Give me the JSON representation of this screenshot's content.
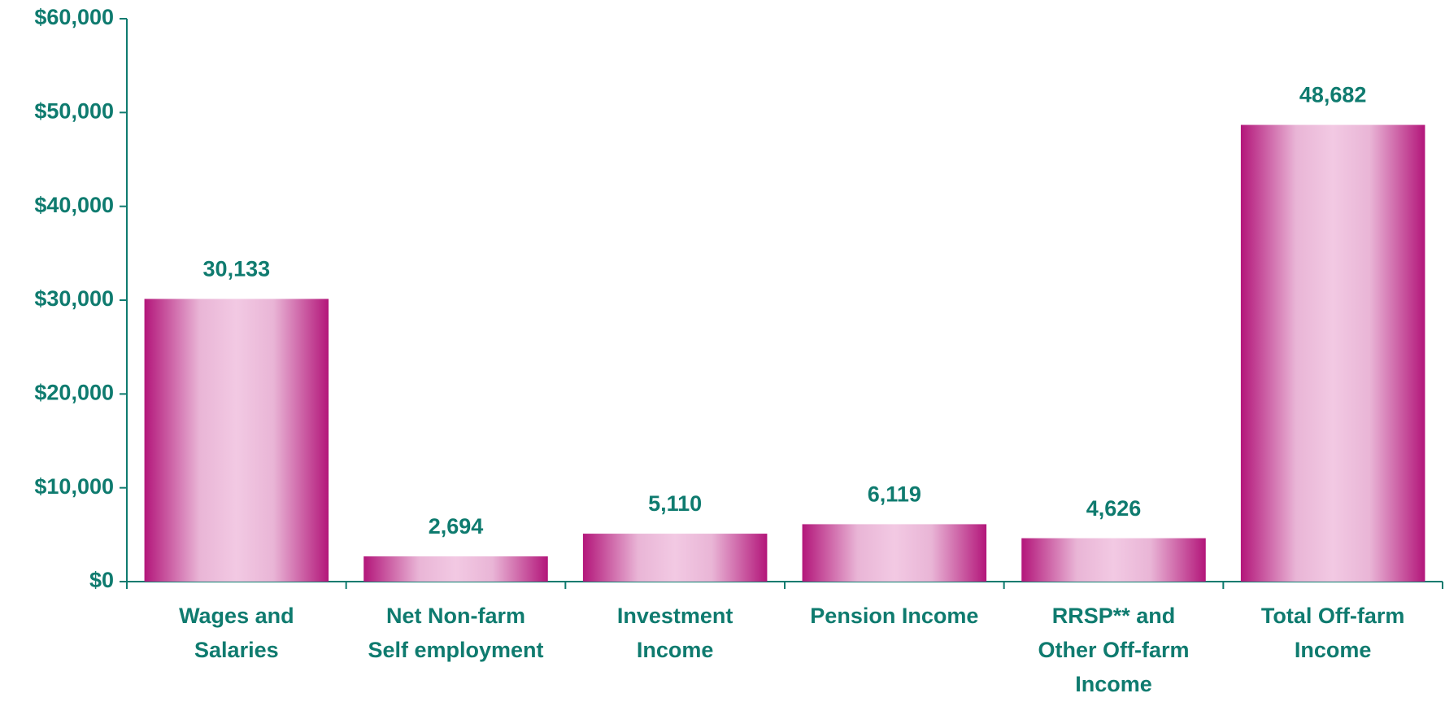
{
  "chart_data": {
    "type": "bar",
    "categories": [
      "Wages and\nSalaries",
      "Net Non-farm\nSelf employment",
      "Investment\nIncome",
      "Pension Income",
      "RRSP** and\nOther Off-farm\nIncome",
      "Total Off-farm\nIncome"
    ],
    "values": [
      30133,
      2694,
      5110,
      6119,
      4626,
      48682
    ],
    "value_labels": [
      "30,133",
      "2,694",
      "5,110",
      "6,119",
      "4,626",
      "48,682"
    ],
    "color": "#b3167a",
    "ylim": [
      0,
      60000
    ],
    "yticks": [
      {
        "value": 0,
        "label": "$0"
      },
      {
        "value": 10000,
        "label": "$10,000"
      },
      {
        "value": 20000,
        "label": "$20,000"
      },
      {
        "value": 30000,
        "label": "$30,000"
      },
      {
        "value": 40000,
        "label": "$40,000"
      },
      {
        "value": 50000,
        "label": "$50,000"
      },
      {
        "value": 60000,
        "label": "$60,000"
      }
    ],
    "grid": false
  }
}
